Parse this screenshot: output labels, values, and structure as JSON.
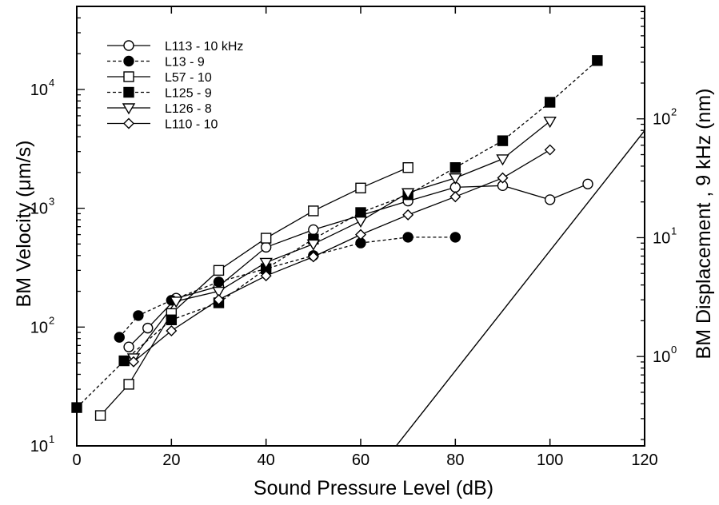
{
  "chart_data": {
    "type": "line",
    "xlabel": "Sound Pressure Level (dB)",
    "ylabel": "BM Velocity (μm/s)",
    "y2label": "BM Displacement , 9 kHz (nm)",
    "xlim": [
      0,
      120
    ],
    "ylim": [
      10,
      50000
    ],
    "yscale": "log",
    "y2lim": [
      0.177,
      884
    ],
    "y2scale": "log",
    "xticks": [
      "0",
      "20",
      "40",
      "60",
      "80",
      "100",
      "120"
    ],
    "xtick_values": [
      0,
      20,
      40,
      60,
      80,
      100,
      120
    ],
    "yticks": [
      {
        "value": 10,
        "base": "10",
        "exp": "1"
      },
      {
        "value": 100,
        "base": "10",
        "exp": "2"
      },
      {
        "value": 1000,
        "base": "10",
        "exp": "3"
      },
      {
        "value": 10000,
        "base": "10",
        "exp": "4"
      }
    ],
    "y2ticks": [
      {
        "value": 1,
        "base": "10",
        "exp": "0"
      },
      {
        "value": 10,
        "base": "10",
        "exp": "1"
      },
      {
        "value": 100,
        "base": "10",
        "exp": "2"
      }
    ],
    "legend_position": "top-left",
    "grid": false,
    "series": [
      {
        "name": "L113 - 10 kHz",
        "dash": "solid",
        "marker": "circle-open",
        "x": [
          11,
          15,
          21,
          30,
          40,
          50,
          60,
          70,
          80,
          90,
          100,
          108
        ],
        "y": [
          68,
          98,
          175,
          220,
          470,
          660,
          870,
          1150,
          1500,
          1550,
          1180,
          1600
        ]
      },
      {
        "name": "L13 - 9",
        "dash": "dashed",
        "marker": "circle-filled",
        "x": [
          9,
          13,
          20,
          30,
          40,
          50,
          60,
          70,
          80
        ],
        "y": [
          82,
          125,
          168,
          240,
          310,
          400,
          510,
          570,
          570
        ]
      },
      {
        "name": "L57 - 10",
        "dash": "solid",
        "marker": "square-open",
        "x": [
          5,
          11,
          20,
          30,
          40,
          50,
          60,
          70
        ],
        "y": [
          18,
          33,
          130,
          300,
          560,
          950,
          1480,
          2200
        ]
      },
      {
        "name": "L125 - 9",
        "dash": "dashed",
        "marker": "square-filled",
        "x": [
          0,
          10,
          20,
          30,
          40,
          50,
          60,
          70,
          80,
          90,
          100,
          110
        ],
        "y": [
          21,
          52,
          115,
          160,
          310,
          550,
          920,
          1300,
          2200,
          3700,
          7800,
          17500
        ]
      },
      {
        "name": "L126 - 8",
        "dash": "solid",
        "marker": "triangle-down-open",
        "x": [
          12,
          21,
          30,
          40,
          50,
          60,
          70,
          80,
          90,
          100
        ],
        "y": [
          55,
          165,
          200,
          350,
          500,
          780,
          1350,
          1800,
          2600,
          5400
        ]
      },
      {
        "name": "L110 - 10",
        "dash": "solid",
        "marker": "diamond-open",
        "x": [
          12,
          20,
          30,
          40,
          50,
          60,
          70,
          80,
          90,
          100
        ],
        "y": [
          51,
          93,
          170,
          270,
          390,
          600,
          880,
          1250,
          1800,
          3100
        ]
      }
    ],
    "reference_line": {
      "x": [
        67.5,
        120
      ],
      "y": [
        10,
        4500
      ]
    }
  }
}
